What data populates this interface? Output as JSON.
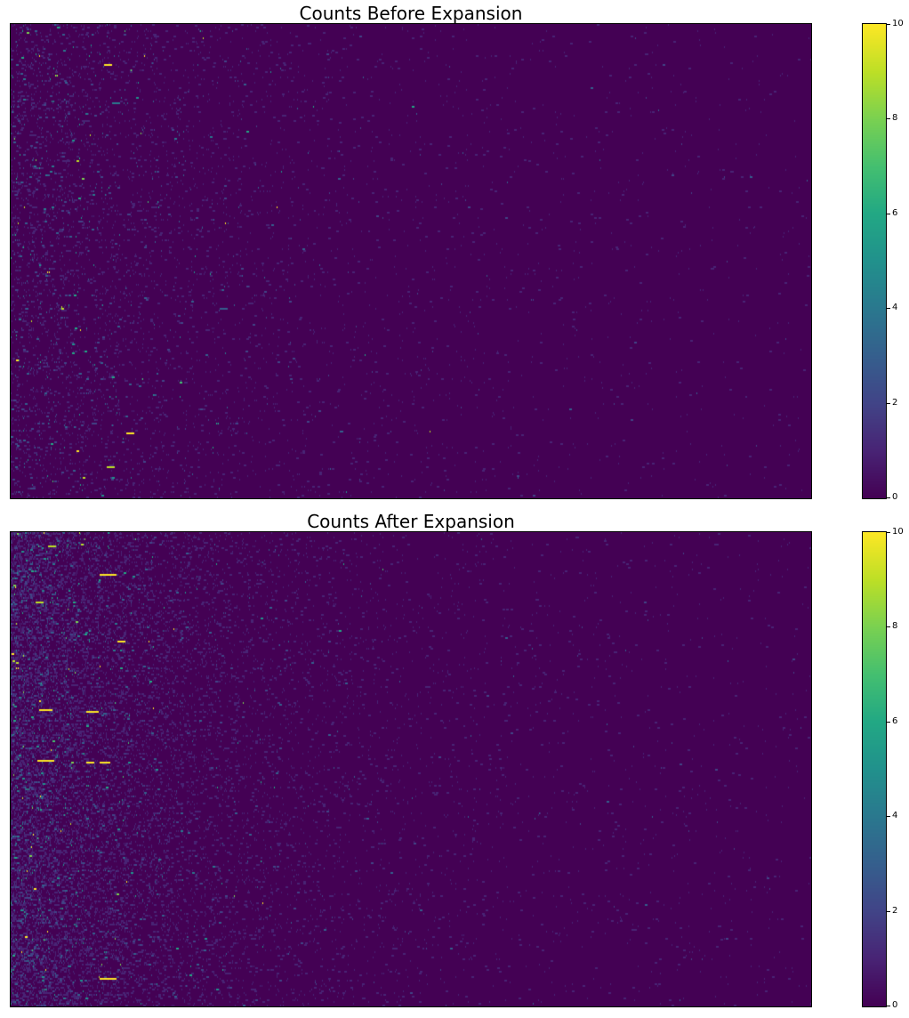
{
  "chart_data": [
    {
      "type": "heatmap",
      "title": "Counts Before Expansion",
      "colormap": "viridis",
      "vmin": 0,
      "vmax": 10,
      "rows": 270,
      "cols": 900,
      "xticks": [],
      "yticks": [],
      "colorbar": {
        "ticks": [
          0,
          2,
          4,
          6,
          8,
          10
        ],
        "tick_labels": [
          "0",
          "2",
          "4",
          "6",
          "8",
          "10"
        ],
        "position": "right"
      },
      "description": "Sparse integer counts; mostly 0, scattered 1-3 values concentrated in the leftmost columns, very rare values near 10",
      "density": {
        "left_rate": 0.09,
        "decay_columns": 180,
        "base_rate": 0.004,
        "max_value": 10
      },
      "bright_cells": [
        {
          "row": 23,
          "col": 105,
          "value": 10
        },
        {
          "row": 233,
          "col": 130,
          "value": 10
        },
        {
          "row": 252,
          "col": 108,
          "value": 9
        },
        {
          "row": 45,
          "col": 114,
          "value": 4
        },
        {
          "row": 162,
          "col": 235,
          "value": 3
        }
      ]
    },
    {
      "type": "heatmap",
      "title": "Counts After Expansion",
      "colormap": "viridis",
      "vmin": 0,
      "vmax": 10,
      "rows": 270,
      "cols": 900,
      "xticks": [],
      "yticks": [],
      "colorbar": {
        "ticks": [
          0,
          2,
          4,
          6,
          8,
          10
        ],
        "tick_labels": [
          "0",
          "2",
          "4",
          "6",
          "8",
          "10"
        ],
        "position": "right"
      },
      "description": "Denser counts than before; many values 3-7 and several 10s in the leftmost ~150 columns, decaying to sparse values on the right",
      "density": {
        "left_rate": 0.32,
        "decay_columns": 140,
        "base_rate": 0.006,
        "max_value": 10
      },
      "bright_cells": [
        {
          "row": 24,
          "col": 100,
          "value": 10
        },
        {
          "row": 24,
          "col": 105,
          "value": 10
        },
        {
          "row": 24,
          "col": 110,
          "value": 10
        },
        {
          "row": 62,
          "col": 120,
          "value": 10
        },
        {
          "row": 102,
          "col": 85,
          "value": 10
        },
        {
          "row": 102,
          "col": 90,
          "value": 10
        },
        {
          "row": 131,
          "col": 85,
          "value": 10
        },
        {
          "row": 131,
          "col": 100,
          "value": 10
        },
        {
          "row": 131,
          "col": 103,
          "value": 10
        },
        {
          "row": 101,
          "col": 32,
          "value": 10
        },
        {
          "row": 101,
          "col": 38,
          "value": 10
        },
        {
          "row": 8,
          "col": 42,
          "value": 9
        },
        {
          "row": 40,
          "col": 28,
          "value": 9
        },
        {
          "row": 254,
          "col": 100,
          "value": 10
        },
        {
          "row": 254,
          "col": 106,
          "value": 10
        },
        {
          "row": 254,
          "col": 110,
          "value": 10
        },
        {
          "row": 130,
          "col": 30,
          "value": 10
        },
        {
          "row": 130,
          "col": 35,
          "value": 10
        },
        {
          "row": 130,
          "col": 40,
          "value": 10
        }
      ]
    }
  ]
}
